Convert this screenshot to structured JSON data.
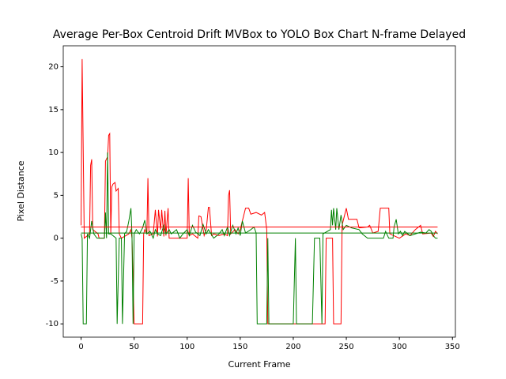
{
  "chart_data": {
    "type": "line",
    "title": "Average Per-Box Centroid Drift MVBox to YOLO Box Chart N-frame Delayed",
    "x_label": "Current Frame",
    "y_label": "Pixel Distance",
    "xlim": [
      -16.8,
      352.8
    ],
    "ylim": [
      -11.55,
      22.45
    ],
    "xticks": [
      0,
      50,
      100,
      150,
      200,
      250,
      300,
      350
    ],
    "yticks": [
      -10,
      -5,
      0,
      5,
      10,
      15,
      20
    ],
    "grid": false,
    "series": [
      {
        "color": "#ff0000",
        "x": [
          0,
          1,
          3,
          8,
          9,
          10,
          11,
          16,
          17,
          22,
          23,
          25,
          26,
          27,
          28,
          29,
          30,
          32,
          33,
          35,
          36,
          38,
          45,
          47,
          48,
          50,
          58,
          59,
          60,
          62,
          63,
          64,
          68,
          70,
          72,
          73,
          75,
          76,
          78,
          79,
          80,
          82,
          83,
          100,
          101,
          102,
          105,
          110,
          111,
          113,
          116,
          118,
          120,
          121,
          123,
          125,
          130,
          135,
          138,
          139,
          140,
          141,
          145,
          148,
          150,
          155,
          158,
          160,
          165,
          170,
          173,
          175,
          176,
          230,
          231,
          237,
          238,
          245,
          246,
          250,
          252,
          260,
          262,
          270,
          272,
          275,
          280,
          282,
          290,
          291,
          300,
          306,
          310,
          315,
          320,
          322,
          330,
          332,
          334,
          336
        ],
        "values": [
          1.5,
          20.9,
          0,
          0.5,
          8.5,
          9.2,
          1,
          0.5,
          0,
          0,
          9,
          9.5,
          12,
          12.2,
          0.5,
          6,
          6.3,
          6.5,
          5.5,
          5.8,
          0.5,
          0,
          0.5,
          1,
          0,
          -10,
          -10,
          0.5,
          1,
          0.5,
          7,
          0.3,
          0.5,
          3.3,
          0.2,
          3.3,
          1,
          3.3,
          0.2,
          3.2,
          0.3,
          3.5,
          0,
          0,
          7,
          0.3,
          0.5,
          0,
          2.6,
          2.5,
          0.3,
          1,
          3.6,
          3.6,
          0.3,
          0.5,
          0.3,
          0.5,
          0.3,
          5,
          5.6,
          0.5,
          1,
          0.5,
          1,
          3.5,
          3.5,
          2.8,
          3,
          2.7,
          3,
          1,
          -10,
          -10,
          0,
          0,
          -10,
          -10,
          1.5,
          3.5,
          2.2,
          2.2,
          1.2,
          1.3,
          1.5,
          0.6,
          0.8,
          3.5,
          3.5,
          0.5,
          0,
          0.5,
          0.3,
          1,
          1.5,
          0.5,
          0.6,
          0.2,
          0.8,
          0.5
        ]
      },
      {
        "color": "#008000",
        "x": [
          0,
          1,
          2,
          5,
          6,
          8,
          10,
          12,
          15,
          22,
          23,
          24,
          25,
          26,
          28,
          33,
          34,
          36,
          38,
          39,
          41,
          43,
          45,
          47,
          48,
          49,
          50,
          52,
          55,
          58,
          60,
          62,
          65,
          68,
          70,
          72,
          75,
          78,
          80,
          83,
          85,
          90,
          93,
          96,
          100,
          102,
          105,
          108,
          112,
          115,
          118,
          120,
          125,
          130,
          133,
          135,
          138,
          140,
          143,
          146,
          148,
          150,
          152,
          155,
          160,
          163,
          165,
          166,
          175,
          176,
          177,
          200,
          202,
          203,
          218,
          220,
          225,
          227,
          228,
          235,
          236,
          237,
          238,
          240,
          241,
          243,
          245,
          247,
          250,
          255,
          262,
          265,
          270,
          285,
          287,
          290,
          294,
          295,
          297,
          299,
          301,
          303,
          305,
          310,
          315,
          320,
          325,
          328,
          330,
          332,
          334,
          336
        ],
        "values": [
          0.5,
          0,
          -10,
          -10,
          0.5,
          0,
          2,
          0.5,
          0,
          0,
          3,
          0,
          10,
          0.5,
          0.5,
          0,
          -10,
          0,
          0,
          -10,
          0.5,
          0.8,
          2,
          3.5,
          0.3,
          -10,
          0.5,
          1,
          0.5,
          1.2,
          2.1,
          0.5,
          0.8,
          0,
          1,
          0.5,
          0.3,
          1.5,
          0.5,
          1,
          0.5,
          1,
          0,
          0.5,
          1,
          0.3,
          1.5,
          0.7,
          0.3,
          1.6,
          0.5,
          1,
          0,
          0.5,
          1,
          0.3,
          1.3,
          0.3,
          1.5,
          0.5,
          1.2,
          0.3,
          2,
          0.6,
          1,
          1.3,
          0.6,
          -10,
          -10,
          0,
          -10,
          -10,
          0,
          -10,
          -10,
          0,
          0,
          -10,
          0.5,
          1,
          3.3,
          1.5,
          3.5,
          1,
          3.5,
          1,
          2.7,
          1,
          1.5,
          1.2,
          1,
          0.5,
          0,
          0,
          0.8,
          0,
          0,
          1.3,
          2.2,
          0.5,
          0.8,
          0.3,
          0.8,
          0.3,
          0.5,
          0.7,
          0.6,
          1,
          0.8,
          0.3,
          0,
          0
        ]
      },
      {
        "color": "#ff0000",
        "x": [
          0,
          336
        ],
        "values": [
          1.3,
          1.3
        ]
      },
      {
        "color": "#008000",
        "x": [
          0,
          336
        ],
        "values": [
          0.6,
          0.6
        ]
      }
    ]
  }
}
